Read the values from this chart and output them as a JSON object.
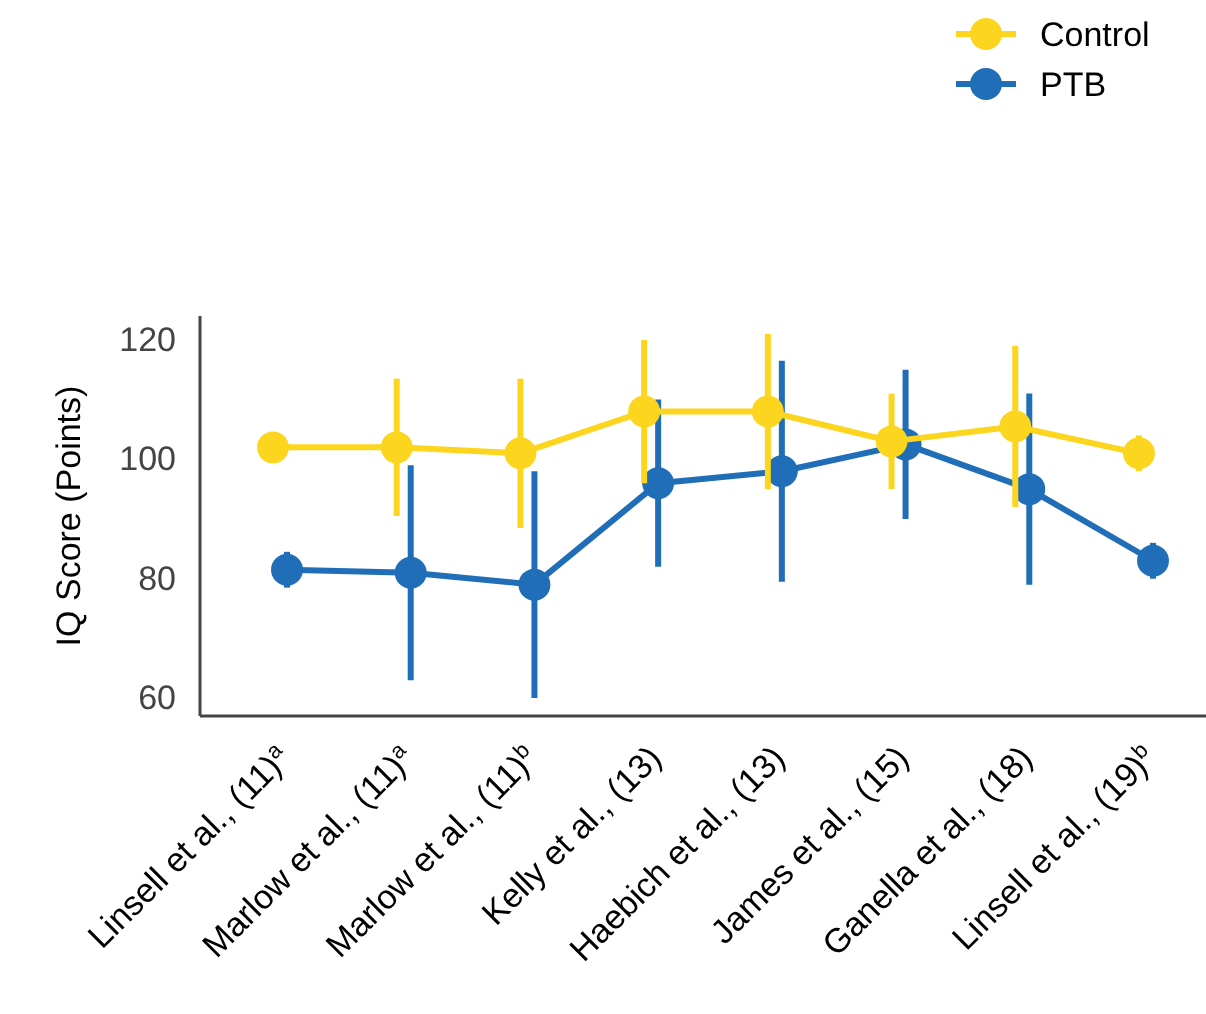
{
  "chart_data": {
    "type": "line",
    "ylabel": "IQ Score (Points)",
    "categories": [
      "Linsell et al., (11)$^{a}$",
      "Marlow et al., (11)$^{a}$",
      "Marlow et al., (11)$^{b}$",
      "Kelly et al., (13)",
      "Haebich et al., (13)",
      "James et al., (15)",
      "Ganella et al., (18)",
      "Linsell et al., (19)$^{b}$"
    ],
    "series": [
      {
        "name": "Control",
        "color": "#fbd51e",
        "values": [
          102,
          102,
          101,
          108,
          108,
          103,
          105.5,
          101
        ],
        "errors": [
          2,
          11.5,
          12.5,
          12,
          13,
          8,
          13.5,
          3
        ]
      },
      {
        "name": "PTB",
        "color": "#1f6eb7",
        "values": [
          81.5,
          81,
          79,
          96,
          98,
          102.5,
          95,
          83
        ],
        "errors": [
          3,
          18,
          19,
          14,
          18.5,
          12.5,
          16,
          3
        ]
      }
    ],
    "ylim": [
      57,
      124
    ],
    "yticks": [
      60,
      80,
      100,
      120
    ],
    "grid": false,
    "legend": "top right",
    "marker": "circle",
    "line_style": "solid"
  }
}
